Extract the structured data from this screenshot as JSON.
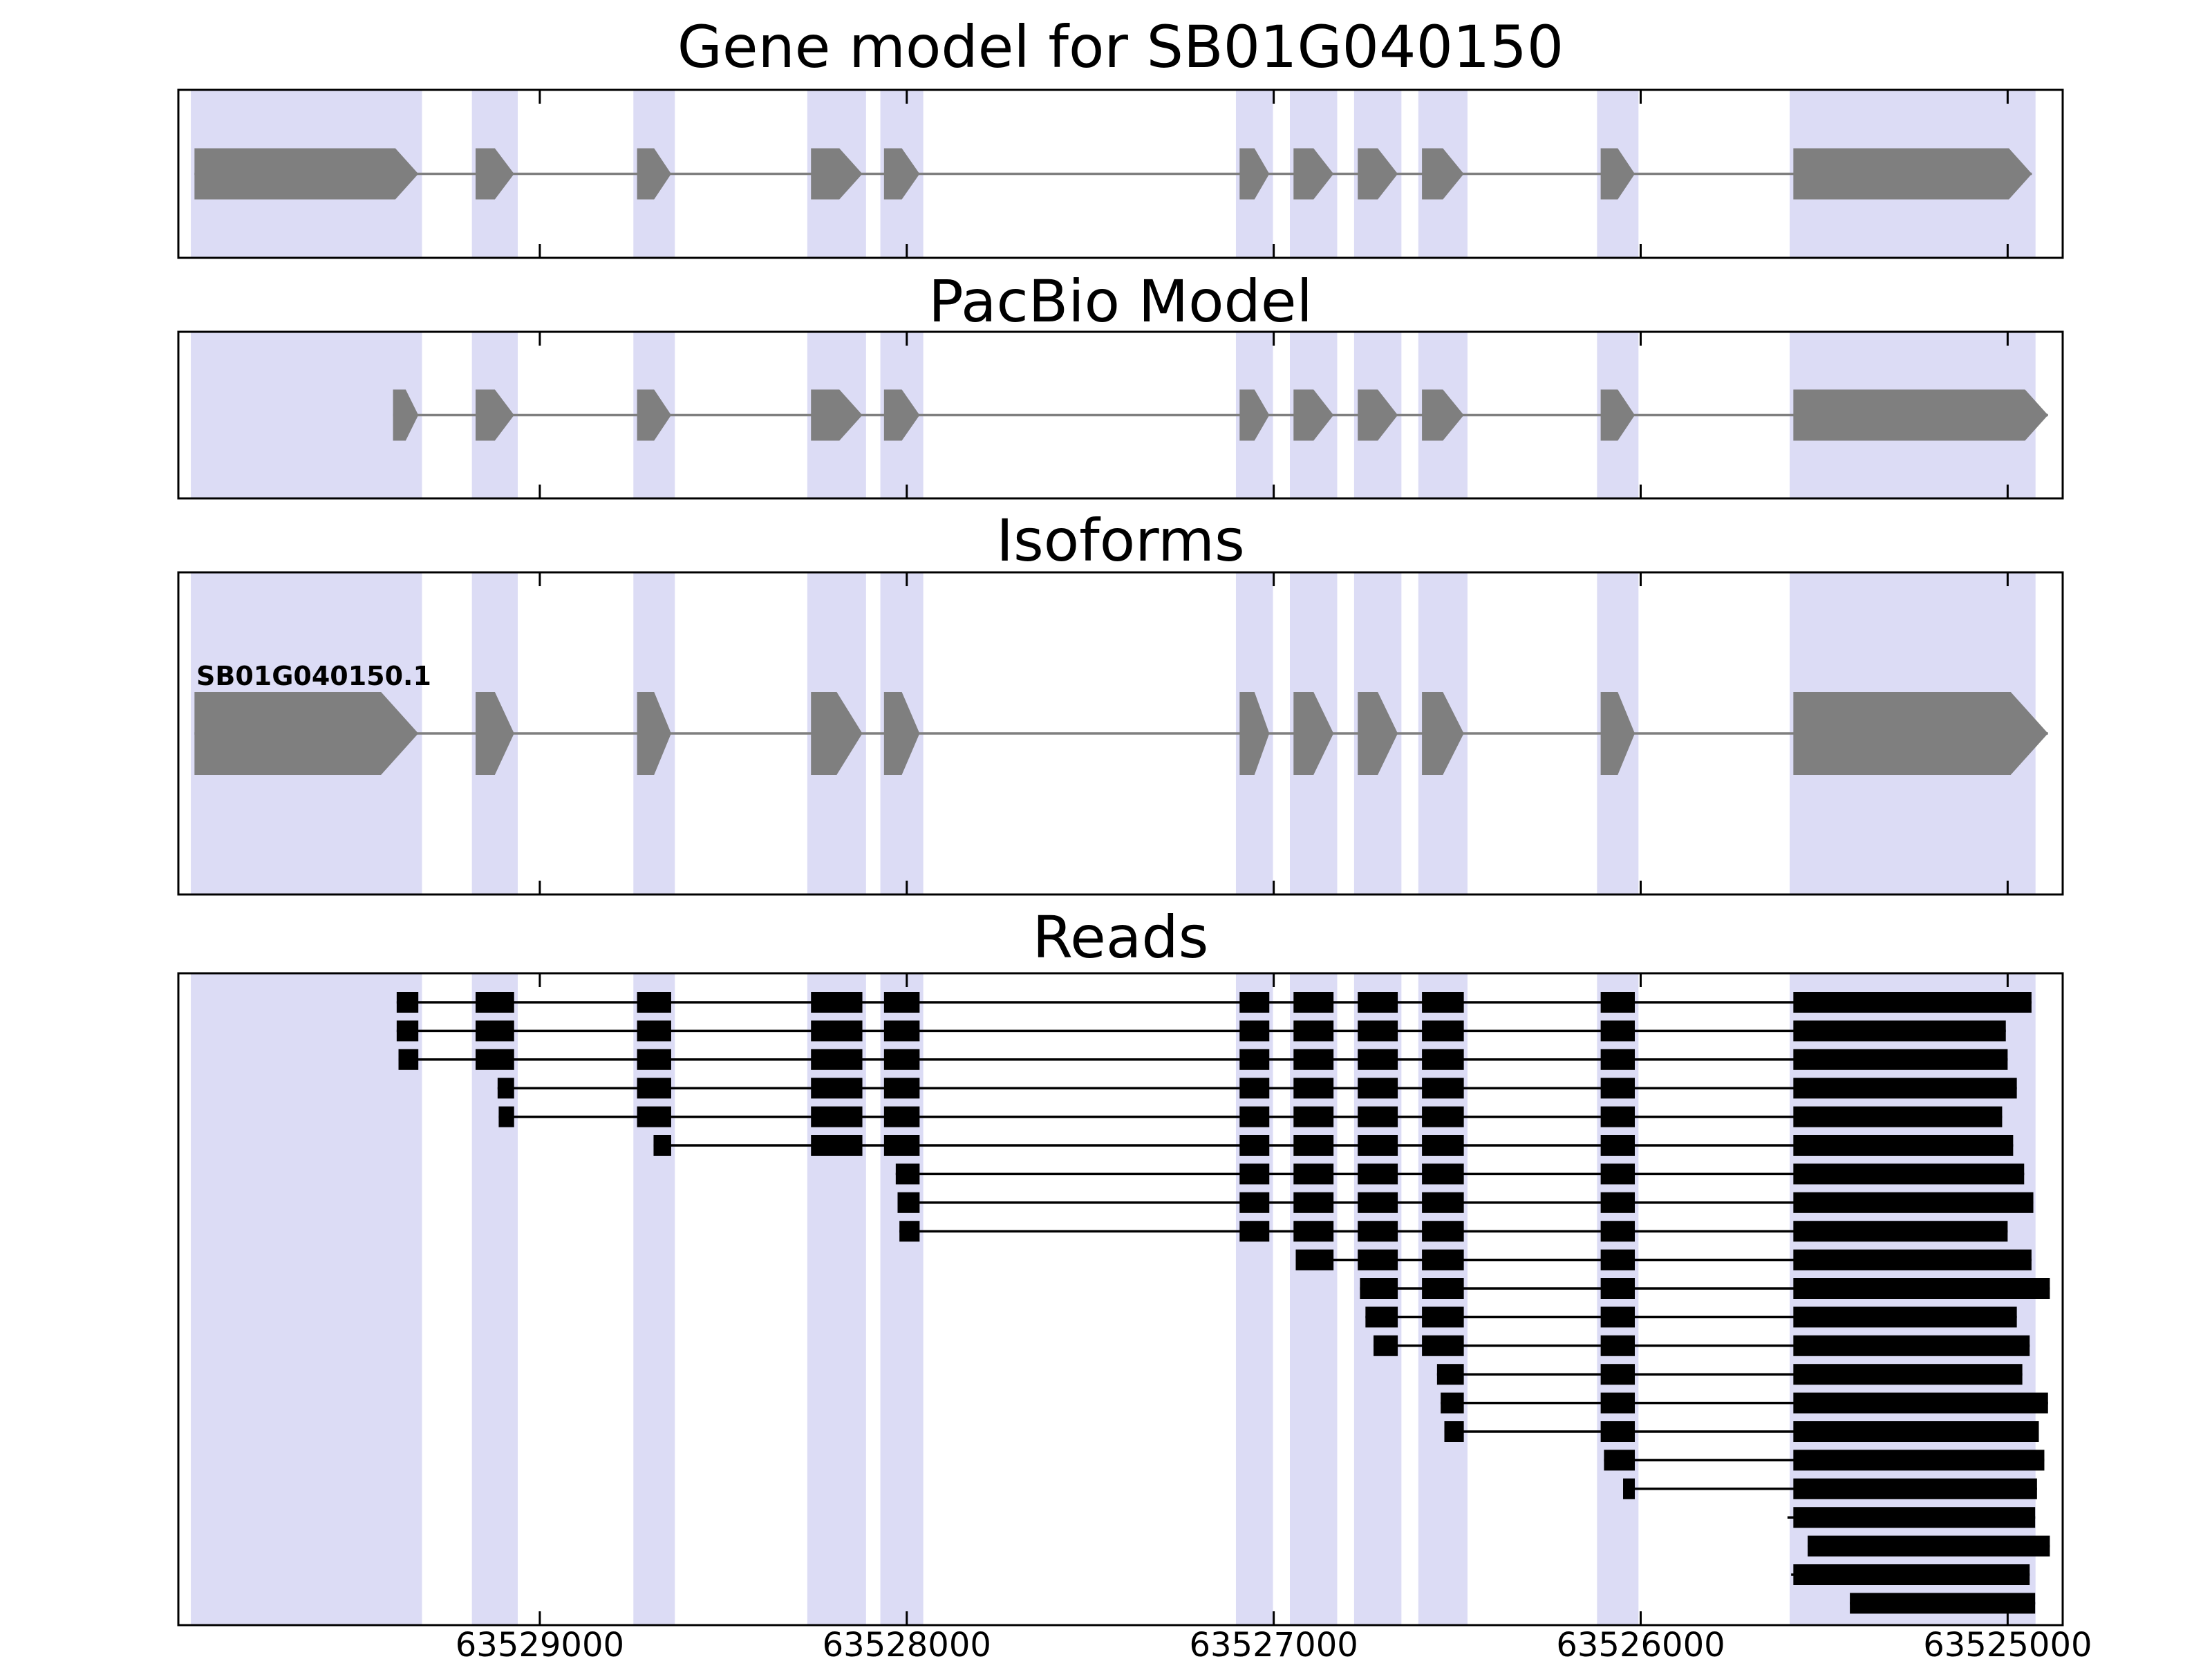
{
  "figure": {
    "colors": {
      "background": "#ffffff",
      "highlight": "#dcdcf5",
      "exon": "#7f7f7f",
      "read": "#000000",
      "border": "#000000"
    }
  },
  "panels": [
    {
      "id": "gene-model",
      "title": "Gene model for SB01G040150"
    },
    {
      "id": "pacbio-model",
      "title": "PacBio Model"
    },
    {
      "id": "isoforms",
      "title": "Isoforms"
    },
    {
      "id": "reads",
      "title": "Reads"
    }
  ],
  "chart_data": {
    "type": "gene-model-tracks",
    "x_axis": {
      "reversed": true,
      "range_left": 63529985,
      "range_right": 63524850,
      "ticks": [
        {
          "value": 63529000,
          "label": "63529000"
        },
        {
          "value": 63528000,
          "label": "63528000"
        },
        {
          "value": 63527000,
          "label": "63527000"
        },
        {
          "value": 63526000,
          "label": "63526000"
        },
        {
          "value": 63525000,
          "label": "63525000"
        }
      ]
    },
    "highlight_regions": [
      [
        63529951,
        63529321
      ],
      [
        63529185,
        63529060
      ],
      [
        63528745,
        63528632
      ],
      [
        63528271,
        63528111
      ],
      [
        63528072,
        63527955
      ],
      [
        63527103,
        63527002
      ],
      [
        63526956,
        63526827
      ],
      [
        63526781,
        63526652
      ],
      [
        63526606,
        63526472
      ],
      [
        63526119,
        63526006
      ],
      [
        63525594,
        63524924
      ]
    ],
    "tracks": {
      "gene_model": {
        "exons": [
          [
            63529941,
            63529331
          ],
          [
            63529175,
            63529070
          ],
          [
            63528735,
            63528642
          ],
          [
            63528261,
            63528121
          ],
          [
            63528062,
            63527965
          ],
          [
            63527093,
            63527012
          ],
          [
            63526946,
            63526837
          ],
          [
            63526771,
            63526662
          ],
          [
            63526596,
            63526482
          ],
          [
            63526109,
            63526016
          ],
          [
            63525584,
            63524934
          ]
        ]
      },
      "pacbio": {
        "exons": [
          [
            63529400,
            63529331
          ],
          [
            63529175,
            63529070
          ],
          [
            63528735,
            63528642
          ],
          [
            63528261,
            63528121
          ],
          [
            63528062,
            63527965
          ],
          [
            63527093,
            63527012
          ],
          [
            63526946,
            63526837
          ],
          [
            63526771,
            63526662
          ],
          [
            63526596,
            63526482
          ],
          [
            63526109,
            63526016
          ],
          [
            63525584,
            63524890
          ]
        ]
      },
      "isoform": {
        "name": "SB01G040150.1",
        "exons": [
          [
            63529941,
            63529331
          ],
          [
            63529175,
            63529070
          ],
          [
            63528735,
            63528642
          ],
          [
            63528261,
            63528121
          ],
          [
            63528062,
            63527965
          ],
          [
            63527093,
            63527012
          ],
          [
            63526946,
            63526837
          ],
          [
            63526771,
            63526662
          ],
          [
            63526596,
            63526482
          ],
          [
            63526109,
            63526016
          ],
          [
            63525584,
            63524890
          ]
        ]
      }
    },
    "read_exon_reference": [
      [
        63529941,
        63529331
      ],
      [
        63529175,
        63529070
      ],
      [
        63528735,
        63528642
      ],
      [
        63528261,
        63528121
      ],
      [
        63528062,
        63527965
      ],
      [
        63527093,
        63527012
      ],
      [
        63526946,
        63526837
      ],
      [
        63526771,
        63526662
      ],
      [
        63526596,
        63526482
      ],
      [
        63526109,
        63526016
      ],
      [
        63525584,
        63524850
      ]
    ],
    "reads": [
      [
        63529390,
        63524935
      ],
      [
        63529390,
        63525005
      ],
      [
        63529385,
        63525000
      ],
      [
        63529115,
        63524975
      ],
      [
        63529112,
        63525015
      ],
      [
        63528690,
        63524985
      ],
      [
        63528030,
        63524955
      ],
      [
        63528025,
        63524930
      ],
      [
        63528020,
        63525000
      ],
      [
        63526940,
        63524935
      ],
      [
        63526765,
        63524885
      ],
      [
        63526750,
        63524975
      ],
      [
        63526728,
        63524940
      ],
      [
        63526555,
        63524960
      ],
      [
        63526545,
        63524890
      ],
      [
        63526535,
        63524915
      ],
      [
        63526100,
        63524900
      ],
      [
        63526048,
        63524920
      ],
      [
        63525600,
        63524925
      ],
      [
        63525545,
        63524885
      ],
      [
        63525590,
        63524940
      ],
      [
        63525430,
        63524925
      ]
    ]
  }
}
